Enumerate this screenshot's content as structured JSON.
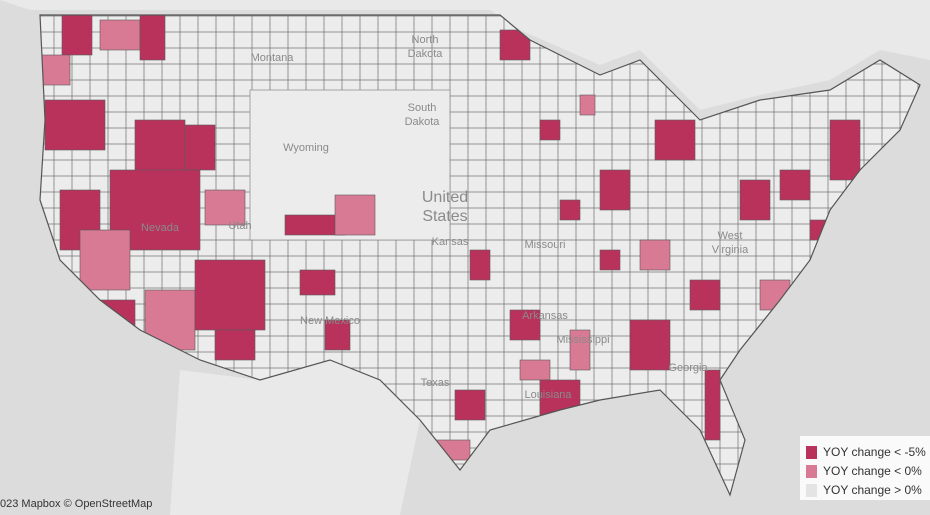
{
  "map": {
    "places": [
      {
        "lines": [
          "North",
          "Dakota"
        ],
        "size": 11
      },
      {
        "lines": [
          "Montana"
        ],
        "size": 11
      },
      {
        "lines": [
          "South",
          "Dakota"
        ],
        "size": 11
      },
      {
        "lines": [
          "Wyoming"
        ],
        "size": 11
      },
      {
        "lines": [
          "United",
          "States"
        ],
        "size": 16
      },
      {
        "lines": [
          "Kansas"
        ],
        "size": 11
      },
      {
        "lines": [
          "Nevada"
        ],
        "size": 11
      },
      {
        "lines": [
          "Utah"
        ],
        "size": 11
      },
      {
        "lines": [
          "New Mexico"
        ],
        "size": 11
      },
      {
        "lines": [
          "Texas"
        ],
        "size": 11
      },
      {
        "lines": [
          "Missouri"
        ],
        "size": 11
      },
      {
        "lines": [
          "Arkansas"
        ],
        "size": 11
      },
      {
        "lines": [
          "Mississippi"
        ],
        "size": 11
      },
      {
        "lines": [
          "Georgia"
        ],
        "size": 11
      },
      {
        "lines": [
          "Louisiana"
        ],
        "size": 11
      },
      {
        "lines": [
          "West",
          "Virginia"
        ],
        "size": 11
      }
    ],
    "legend": [
      {
        "label": "YOY change < -5%",
        "color": "#b8325c"
      },
      {
        "label": "YOY change < 0%",
        "color": "#d87a93"
      },
      {
        "label": "YOY change > 0%",
        "color": "#e4e4e4"
      }
    ],
    "attribution": "023 Mapbox  © OpenStreetMap"
  }
}
